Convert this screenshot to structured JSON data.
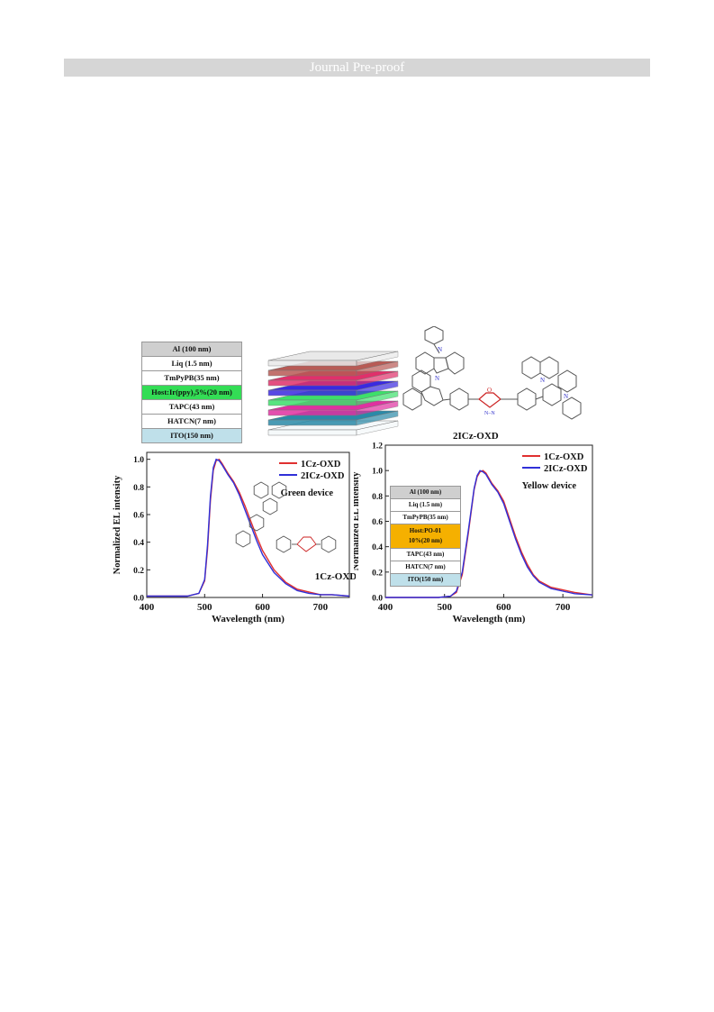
{
  "header": {
    "banner": "Journal Pre-proof"
  },
  "green_device_stack": [
    {
      "label": "Al (100 nm)",
      "color": "#cfcfcf"
    },
    {
      "label": "Liq (1.5 nm)",
      "color": "#ffffff"
    },
    {
      "label": "TmPyPB(35 nm)",
      "color": "#ffffff"
    },
    {
      "label": "Host:Ir(ppy)₃5%(20 nm)",
      "color": "#33dd55"
    },
    {
      "label": "TAPC(43 nm)",
      "color": "#ffffff"
    },
    {
      "label": "HATCN(7 nm)",
      "color": "#ffffff"
    },
    {
      "label": "ITO(150 nm)",
      "color": "#bfe0ea"
    }
  ],
  "yellow_device_stack": [
    {
      "label": "Al (100 nm)",
      "color": "#cfcfcf"
    },
    {
      "label": "Liq (1.5 nm)",
      "color": "#ffffff"
    },
    {
      "label": "TmPyPB(35 nm)",
      "color": "#ffffff"
    },
    {
      "label": "Host:PO-01\n10%(20 nm)",
      "color": "#f5b000",
      "tall": true
    },
    {
      "label": "TAPC(43 nm)",
      "color": "#ffffff"
    },
    {
      "label": "HATCN(7 nm)",
      "color": "#ffffff"
    },
    {
      "label": "ITO(150 nm)",
      "color": "#bfe0ea"
    }
  ],
  "layer_colors_3d": [
    "#e9e9e9",
    "#b85a55",
    "#e0306a",
    "#3a2ae0",
    "#3ce06a",
    "#e030a0",
    "#2a8aa8",
    "#f4f8fa"
  ],
  "molecules": {
    "top_label": "2ICz-OXD",
    "inset_label": "1Cz-OXD"
  },
  "chart_data": [
    {
      "type": "line",
      "xlabel": "Wavelength (nm)",
      "ylabel": "Normalized EL intensity",
      "xlim": [
        400,
        750
      ],
      "ylim": [
        0,
        1.05
      ],
      "x_ticks": [
        400,
        500,
        600,
        700
      ],
      "y_ticks": [
        0.0,
        0.2,
        0.4,
        0.6,
        0.8,
        1.0
      ],
      "annotation": "Green device",
      "legend_position": "top-right",
      "series": [
        {
          "name": "1Cz-OXD",
          "color": "#e03030",
          "x": [
            400,
            470,
            490,
            500,
            505,
            510,
            515,
            520,
            525,
            530,
            540,
            550,
            560,
            570,
            580,
            590,
            600,
            620,
            640,
            660,
            680,
            700,
            720,
            750
          ],
          "y": [
            0.01,
            0.01,
            0.03,
            0.12,
            0.35,
            0.7,
            0.92,
            0.99,
            1.0,
            0.97,
            0.9,
            0.84,
            0.76,
            0.66,
            0.55,
            0.44,
            0.34,
            0.2,
            0.11,
            0.06,
            0.04,
            0.02,
            0.02,
            0.01
          ]
        },
        {
          "name": "2ICz-OXD",
          "color": "#3030d8",
          "x": [
            400,
            470,
            490,
            500,
            505,
            510,
            515,
            520,
            525,
            530,
            540,
            550,
            560,
            570,
            580,
            590,
            600,
            620,
            640,
            660,
            680,
            700,
            720,
            750
          ],
          "y": [
            0.01,
            0.01,
            0.03,
            0.13,
            0.38,
            0.73,
            0.94,
            1.0,
            0.99,
            0.96,
            0.89,
            0.83,
            0.74,
            0.63,
            0.52,
            0.41,
            0.31,
            0.18,
            0.1,
            0.05,
            0.03,
            0.02,
            0.02,
            0.01
          ]
        }
      ]
    },
    {
      "type": "line",
      "xlabel": "Wavelength (nm)",
      "ylabel": "Normalized EL intensity",
      "xlim": [
        400,
        750
      ],
      "ylim": [
        0,
        1.2
      ],
      "x_ticks": [
        400,
        500,
        600,
        700
      ],
      "y_ticks": [
        0.0,
        0.2,
        0.4,
        0.6,
        0.8,
        1.0,
        1.2
      ],
      "annotation": "Yellow device",
      "legend_position": "top-right",
      "series": [
        {
          "name": "1Cz-OXD",
          "color": "#e03030",
          "x": [
            400,
            490,
            510,
            520,
            530,
            540,
            550,
            555,
            560,
            565,
            570,
            580,
            590,
            600,
            610,
            620,
            630,
            640,
            650,
            660,
            680,
            700,
            720,
            750
          ],
          "y": [
            0.0,
            0.0,
            0.01,
            0.04,
            0.18,
            0.5,
            0.85,
            0.95,
            0.99,
            1.0,
            0.98,
            0.9,
            0.84,
            0.76,
            0.62,
            0.48,
            0.36,
            0.26,
            0.18,
            0.13,
            0.08,
            0.06,
            0.04,
            0.02
          ]
        },
        {
          "name": "2ICz-OXD",
          "color": "#3030d8",
          "x": [
            400,
            490,
            510,
            520,
            530,
            540,
            550,
            555,
            560,
            565,
            570,
            580,
            590,
            600,
            610,
            620,
            630,
            640,
            650,
            660,
            680,
            700,
            720,
            750
          ],
          "y": [
            0.0,
            0.0,
            0.01,
            0.05,
            0.2,
            0.52,
            0.86,
            0.96,
            1.0,
            0.99,
            0.97,
            0.89,
            0.83,
            0.74,
            0.6,
            0.46,
            0.34,
            0.24,
            0.17,
            0.12,
            0.07,
            0.05,
            0.03,
            0.02
          ]
        }
      ]
    }
  ]
}
